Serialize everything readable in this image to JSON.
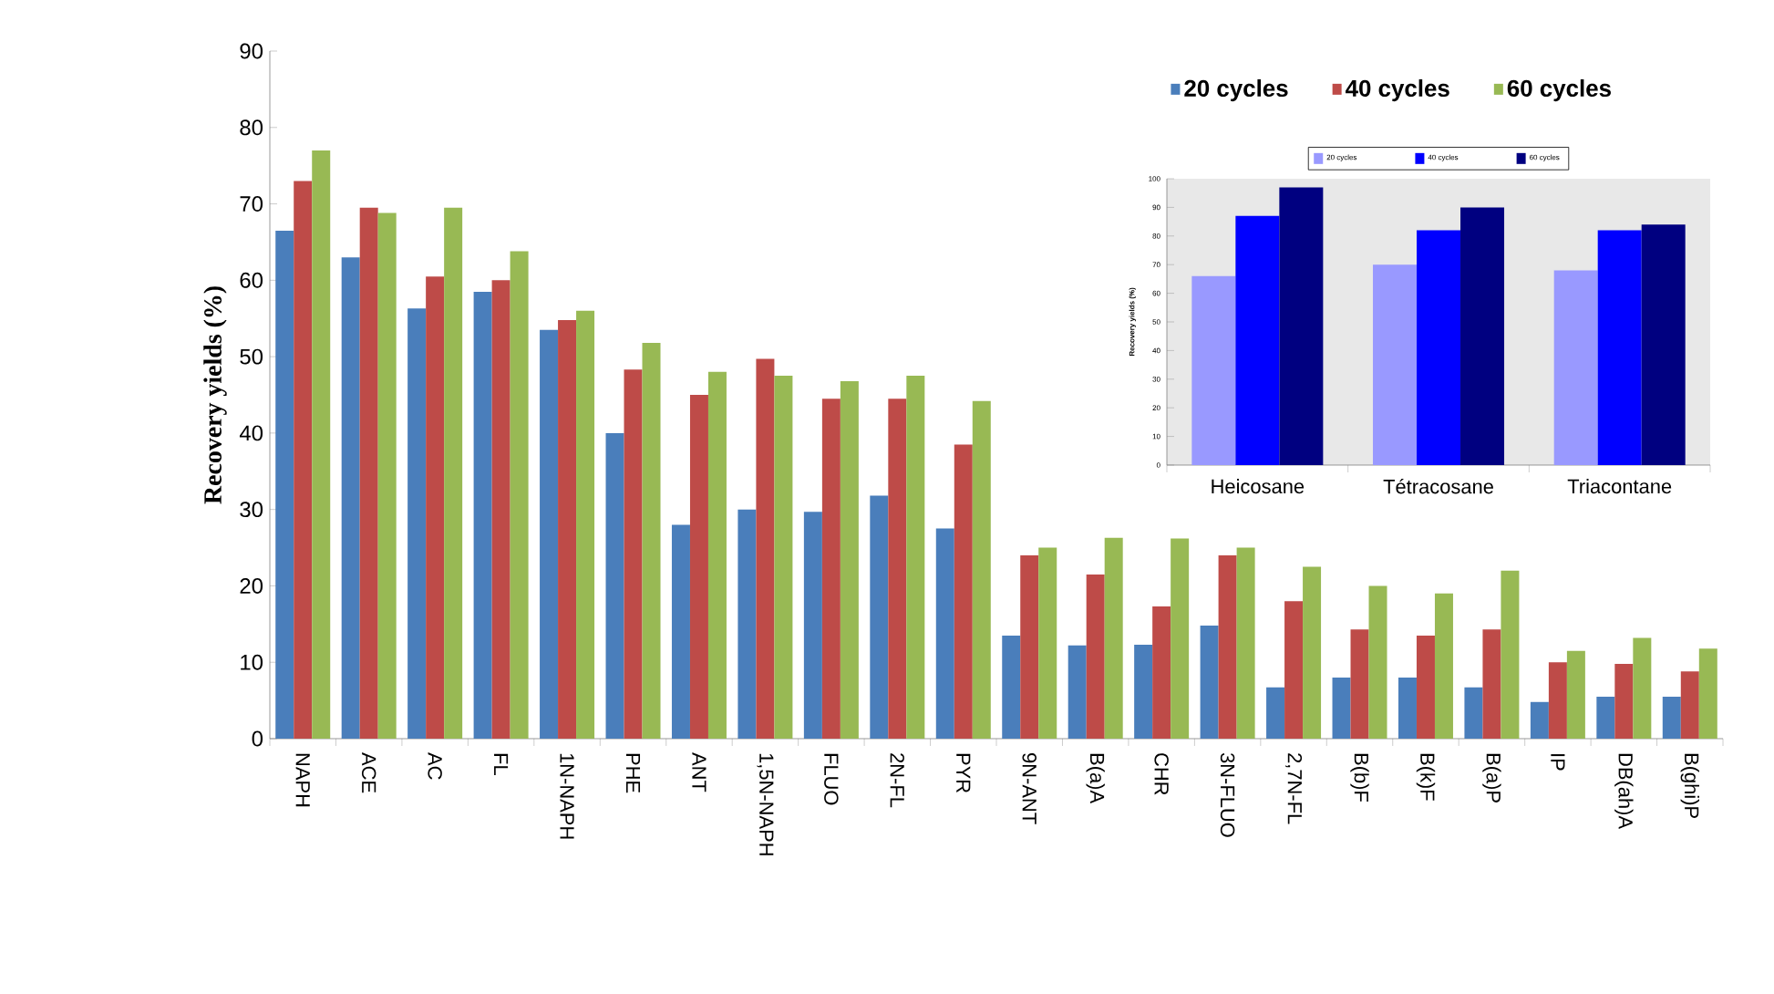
{
  "chart_data": [
    {
      "type": "bar",
      "ylabel": "Recovery yields (%)",
      "categories": [
        "NAPH",
        "ACE",
        "AC",
        "FL",
        "1N-NAPH",
        "PHE",
        "ANT",
        "1,5N-NAPH",
        "FLUO",
        "2N-FL",
        "PYR",
        "9N-ANT",
        "B(a)A",
        "CHR",
        "3N-FLUO",
        "2,7N-FL",
        "B(b)F",
        "B(k)F",
        "B(a)P",
        "IP",
        "DB(ah)A",
        "B(ghi)P"
      ],
      "series": [
        {
          "name": "20 cycles",
          "color": "#4a7ebb",
          "values": [
            66.5,
            63,
            56.3,
            58.5,
            53.5,
            40,
            28,
            30,
            29.7,
            31.8,
            27.5,
            13.5,
            12.2,
            12.3,
            14.8,
            6.7,
            8,
            8,
            6.7,
            4.8,
            5.5,
            5.5
          ]
        },
        {
          "name": "40 cycles",
          "color": "#be4b48",
          "values": [
            73,
            69.5,
            60.5,
            60,
            54.8,
            48.3,
            45,
            49.7,
            44.5,
            44.5,
            38.5,
            24,
            21.5,
            17.3,
            24,
            18,
            14.3,
            13.5,
            14.3,
            10,
            9.8,
            8.8
          ]
        },
        {
          "name": "60 cycles",
          "color": "#98b954",
          "values": [
            77,
            68.8,
            69.5,
            63.8,
            56,
            51.8,
            48,
            47.5,
            46.8,
            47.5,
            44.2,
            25,
            26.3,
            26.2,
            25,
            22.5,
            20,
            19,
            22,
            11.5,
            13.2,
            11.8
          ]
        }
      ],
      "ylim": [
        0,
        90
      ],
      "yticks": [
        0,
        10,
        20,
        30,
        40,
        50,
        60,
        70,
        80,
        90
      ],
      "legend": "top right"
    },
    {
      "type": "bar",
      "ylabel": "Recovery yields (%)",
      "categories": [
        "Heicosane",
        "Tétracosane",
        "Triacontane"
      ],
      "series": [
        {
          "name": "20 cycles",
          "color": "#9999ff",
          "values": [
            66,
            70,
            68
          ]
        },
        {
          "name": "40 cycles",
          "color": "#0000ff",
          "values": [
            87,
            82,
            82
          ]
        },
        {
          "name": "60 cycles",
          "color": "#000080",
          "values": [
            97,
            90,
            84
          ]
        }
      ],
      "ylim": [
        0,
        100
      ],
      "yticks": [
        0,
        10,
        20,
        30,
        40,
        50,
        60,
        70,
        80,
        90,
        100
      ],
      "legend": "top"
    }
  ]
}
